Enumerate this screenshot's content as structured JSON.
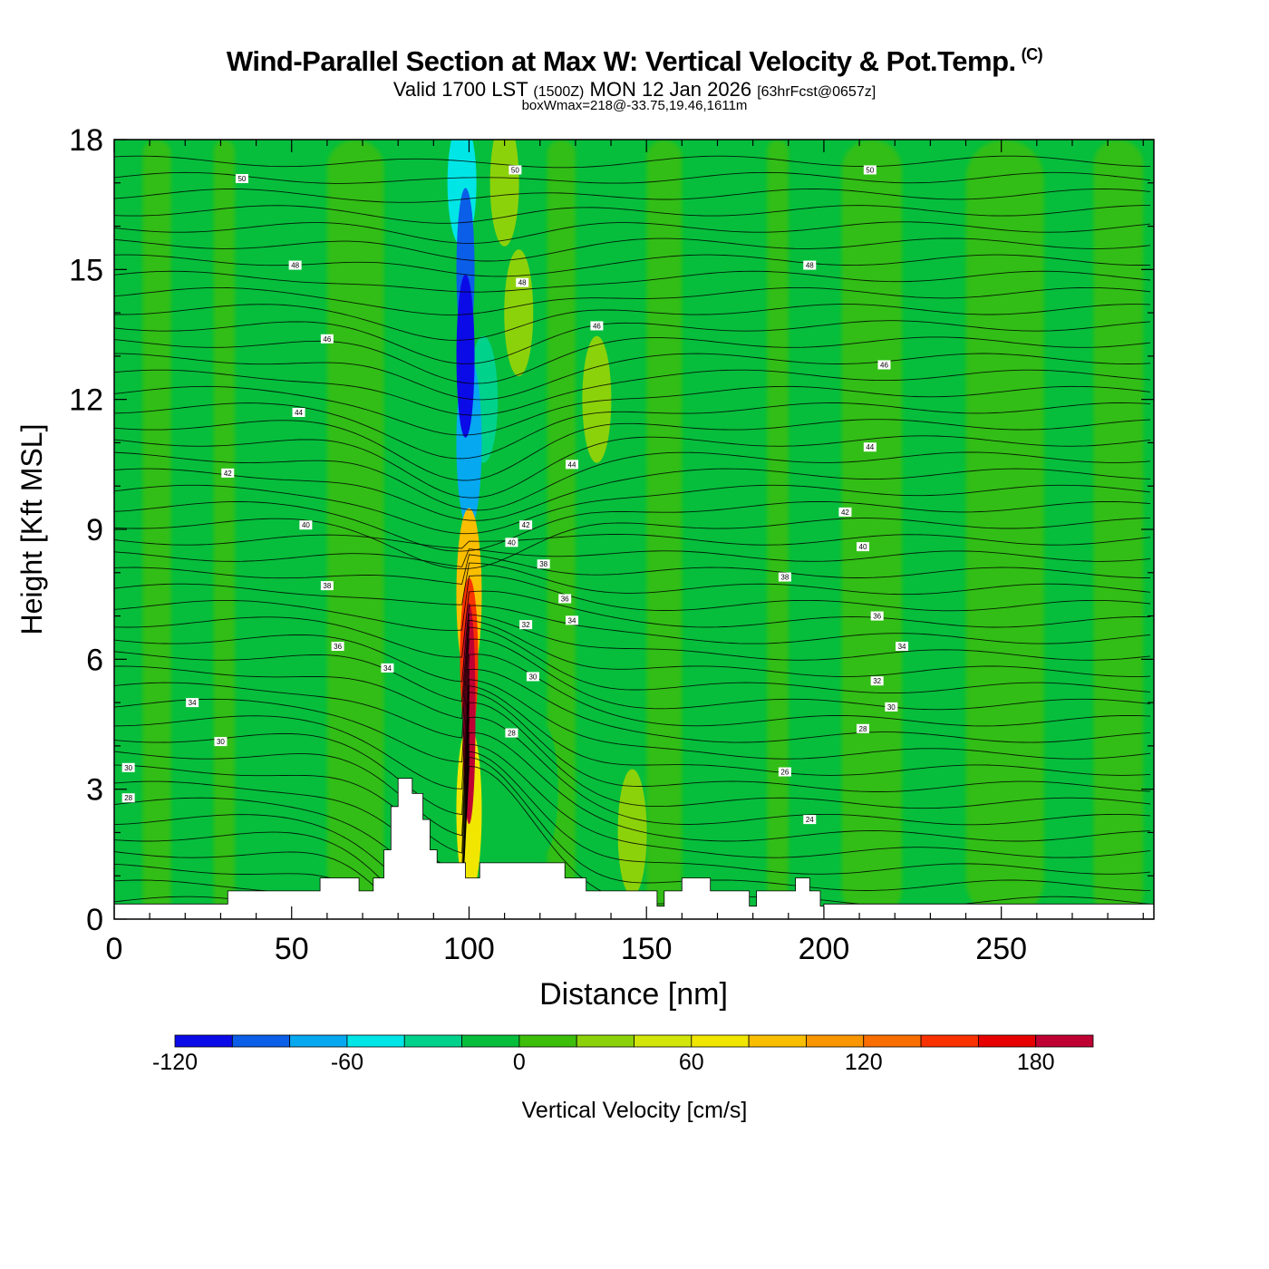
{
  "header": {
    "title": "Wind-Parallel Section at Max W: Vertical Velocity & Pot.Temp.",
    "copyright": "(C)",
    "valid_prefix": "Valid 1700 LST",
    "valid_utc": "(1500Z)",
    "valid_date": "MON 12 Jan 2026",
    "forecast": "[63hrFcst@0657z]",
    "box_info": "boxWmax=218@-33.75,19.46,1611m"
  },
  "chart_data": {
    "type": "heatmap",
    "xlabel": "Distance [nm]",
    "ylabel": "Height [Kft MSL]",
    "xlim": [
      0,
      293
    ],
    "ylim": [
      0,
      18
    ],
    "x_ticks": [
      0,
      50,
      100,
      150,
      200,
      250
    ],
    "y_ticks": [
      0,
      3,
      6,
      9,
      12,
      15,
      18
    ],
    "colorbar": {
      "label": "Vertical Velocity [cm/s]",
      "min": -120,
      "max": 200,
      "step": 20,
      "tick_values": [
        -120,
        -60,
        0,
        60,
        120,
        180
      ],
      "tick_labels": [
        "-120",
        "-60",
        "0",
        "60",
        "120",
        "180"
      ],
      "colors": [
        "#0b0be8",
        "#0b5ee8",
        "#06a8f0",
        "#00e6e6",
        "#00d28c",
        "#06be3c",
        "#3cbe0a",
        "#8cd20a",
        "#d2e60a",
        "#f0e600",
        "#fabe00",
        "#fa9600",
        "#fa6e00",
        "#fa3200",
        "#e60000",
        "#be0032"
      ]
    },
    "max_w": 218,
    "terrain": [
      [
        0,
        0.35
      ],
      [
        32,
        0.35
      ],
      [
        32,
        0.65
      ],
      [
        58,
        0.65
      ],
      [
        58,
        0.95
      ],
      [
        69,
        0.95
      ],
      [
        69,
        0.65
      ],
      [
        73,
        0.65
      ],
      [
        73,
        0.95
      ],
      [
        76,
        0.95
      ],
      [
        76,
        1.6
      ],
      [
        78,
        1.6
      ],
      [
        78,
        2.6
      ],
      [
        80,
        2.6
      ],
      [
        80,
        3.25
      ],
      [
        84,
        3.25
      ],
      [
        84,
        2.9
      ],
      [
        87,
        2.9
      ],
      [
        87,
        2.3
      ],
      [
        89,
        2.3
      ],
      [
        89,
        1.6
      ],
      [
        91,
        1.6
      ],
      [
        91,
        1.3
      ],
      [
        99,
        1.3
      ],
      [
        99,
        0.95
      ],
      [
        103,
        0.95
      ],
      [
        103,
        1.3
      ],
      [
        127,
        1.3
      ],
      [
        127,
        0.95
      ],
      [
        133,
        0.95
      ],
      [
        133,
        0.65
      ],
      [
        153,
        0.65
      ],
      [
        153,
        0.3
      ],
      [
        155,
        0.3
      ],
      [
        155,
        0.65
      ],
      [
        160,
        0.65
      ],
      [
        160,
        0.95
      ],
      [
        168,
        0.95
      ],
      [
        168,
        0.65
      ],
      [
        179,
        0.65
      ],
      [
        179,
        0.3
      ],
      [
        181,
        0.3
      ],
      [
        181,
        0.65
      ],
      [
        192,
        0.65
      ],
      [
        192,
        0.95
      ],
      [
        196,
        0.95
      ],
      [
        196,
        0.65
      ],
      [
        199,
        0.65
      ],
      [
        199,
        0.3
      ],
      [
        200,
        0.3
      ],
      [
        200,
        0.35
      ],
      [
        293,
        0.35
      ]
    ],
    "w_features": [
      {
        "x": 100,
        "y": 5.0,
        "w": 218
      },
      {
        "x": 100,
        "y": 4.5,
        "w": 180
      },
      {
        "x": 100,
        "y": 6.0,
        "w": 150
      },
      {
        "x": 100,
        "y": 7.5,
        "w": 80
      },
      {
        "x": 100,
        "y": 2.5,
        "w": 60
      },
      {
        "x": 99,
        "y": 13.0,
        "w": -110
      },
      {
        "x": 99,
        "y": 15.0,
        "w": -90
      },
      {
        "x": 100,
        "y": 11.0,
        "w": -70
      },
      {
        "x": 104,
        "y": 12.0,
        "w": -40
      },
      {
        "x": 98,
        "y": 17.0,
        "w": -50
      },
      {
        "x": 110,
        "y": 17.0,
        "w": 30
      },
      {
        "x": 114,
        "y": 14.0,
        "w": 30
      },
      {
        "x": 136,
        "y": 12.0,
        "w": 30
      },
      {
        "x": 146,
        "y": 2.0,
        "w": 30
      },
      {
        "x": 178,
        "y": 16.0,
        "w": -20
      },
      {
        "x": 142,
        "y": 17.5,
        "w": -20
      },
      {
        "x": 121,
        "y": 3.0,
        "w": -20
      }
    ],
    "theta_labels": [
      {
        "x": 36,
        "y": 17.1,
        "text": "50"
      },
      {
        "x": 51,
        "y": 15.1,
        "text": "48"
      },
      {
        "x": 60,
        "y": 13.4,
        "text": "46"
      },
      {
        "x": 52,
        "y": 11.7,
        "text": "44"
      },
      {
        "x": 32,
        "y": 10.3,
        "text": "42"
      },
      {
        "x": 54,
        "y": 9.1,
        "text": "40"
      },
      {
        "x": 60,
        "y": 7.7,
        "text": "38"
      },
      {
        "x": 63,
        "y": 6.3,
        "text": "36"
      },
      {
        "x": 77,
        "y": 5.8,
        "text": "34"
      },
      {
        "x": 22,
        "y": 5.0,
        "text": "34"
      },
      {
        "x": 30,
        "y": 4.1,
        "text": "30"
      },
      {
        "x": 4,
        "y": 3.5,
        "text": "30"
      },
      {
        "x": 4,
        "y": 2.8,
        "text": "28"
      },
      {
        "x": 113,
        "y": 17.3,
        "text": "50"
      },
      {
        "x": 115,
        "y": 14.7,
        "text": "48"
      },
      {
        "x": 136,
        "y": 13.7,
        "text": "46"
      },
      {
        "x": 129,
        "y": 10.5,
        "text": "44"
      },
      {
        "x": 116,
        "y": 9.1,
        "text": "42"
      },
      {
        "x": 112,
        "y": 8.7,
        "text": "40"
      },
      {
        "x": 121,
        "y": 8.2,
        "text": "38"
      },
      {
        "x": 127,
        "y": 7.4,
        "text": "36"
      },
      {
        "x": 129,
        "y": 6.9,
        "text": "34"
      },
      {
        "x": 116,
        "y": 6.8,
        "text": "32"
      },
      {
        "x": 118,
        "y": 5.6,
        "text": "30"
      },
      {
        "x": 112,
        "y": 4.3,
        "text": "28"
      },
      {
        "x": 213,
        "y": 17.3,
        "text": "50"
      },
      {
        "x": 196,
        "y": 15.1,
        "text": "48"
      },
      {
        "x": 217,
        "y": 12.8,
        "text": "46"
      },
      {
        "x": 213,
        "y": 10.9,
        "text": "44"
      },
      {
        "x": 206,
        "y": 9.4,
        "text": "42"
      },
      {
        "x": 211,
        "y": 8.6,
        "text": "40"
      },
      {
        "x": 189,
        "y": 7.9,
        "text": "38"
      },
      {
        "x": 215,
        "y": 7.0,
        "text": "36"
      },
      {
        "x": 222,
        "y": 6.3,
        "text": "34"
      },
      {
        "x": 215,
        "y": 5.5,
        "text": "32"
      },
      {
        "x": 219,
        "y": 4.9,
        "text": "30"
      },
      {
        "x": 211,
        "y": 4.4,
        "text": "28"
      },
      {
        "x": 189,
        "y": 3.4,
        "text": "26"
      },
      {
        "x": 196,
        "y": 2.3,
        "text": "24"
      }
    ]
  }
}
